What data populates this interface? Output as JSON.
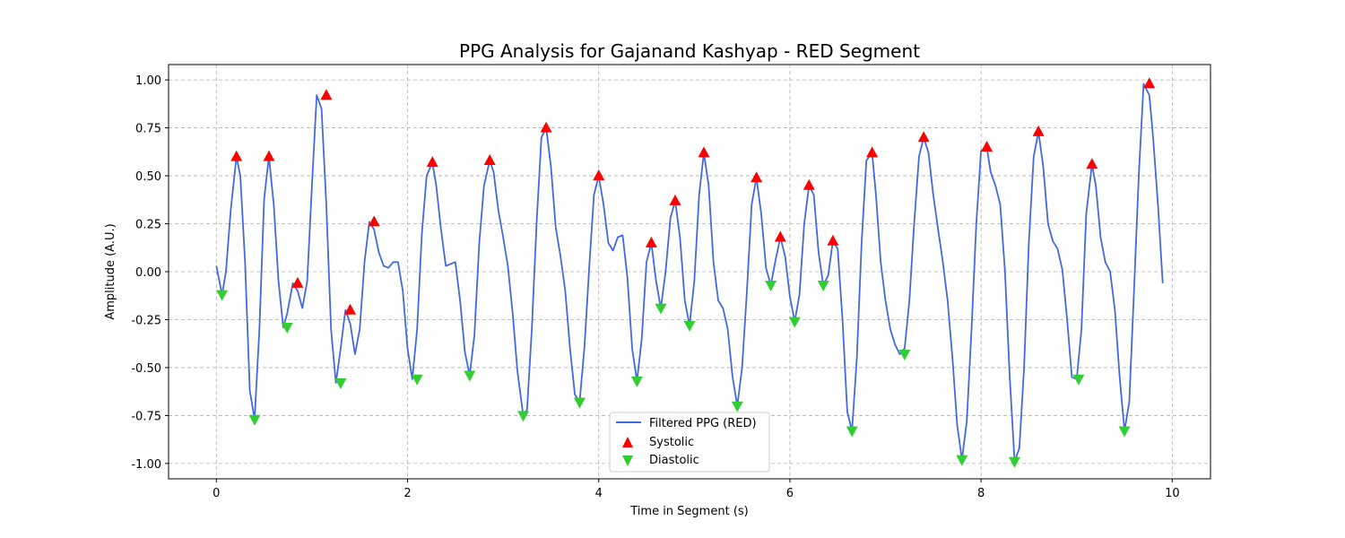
{
  "chart_data": {
    "type": "line",
    "title": "PPG Analysis for Gajanand Kashyap - RED Segment",
    "xlabel": "Time in Segment (s)",
    "ylabel": "Amplitude (A.U.)",
    "xlim": [
      -0.5,
      10.4
    ],
    "ylim": [
      -1.08,
      1.08
    ],
    "xticks": [
      0,
      2,
      4,
      6,
      8,
      10
    ],
    "yticks": [
      -1.0,
      -0.75,
      -0.5,
      -0.25,
      0.0,
      0.25,
      0.5,
      0.75,
      1.0
    ],
    "grid": true,
    "legend_position": "bottom-center",
    "colors": {
      "line": "#4169e1",
      "systolic": "#ff0000",
      "diastolic": "#32cd32"
    },
    "series": [
      {
        "name": "Filtered PPG (RED)",
        "kind": "line",
        "x": [
          0.0,
          0.06,
          0.1,
          0.15,
          0.21,
          0.25,
          0.3,
          0.35,
          0.4,
          0.45,
          0.5,
          0.55,
          0.6,
          0.65,
          0.7,
          0.74,
          0.8,
          0.85,
          0.9,
          0.95,
          1.0,
          1.05,
          1.1,
          1.15,
          1.2,
          1.25,
          1.3,
          1.35,
          1.4,
          1.45,
          1.5,
          1.55,
          1.6,
          1.65,
          1.7,
          1.75,
          1.8,
          1.85,
          1.9,
          1.95,
          2.0,
          2.05,
          2.1,
          2.15,
          2.2,
          2.26,
          2.3,
          2.35,
          2.4,
          2.45,
          2.5,
          2.55,
          2.6,
          2.65,
          2.7,
          2.75,
          2.8,
          2.86,
          2.9,
          2.95,
          3.0,
          3.05,
          3.1,
          3.15,
          3.21,
          3.25,
          3.3,
          3.35,
          3.4,
          3.45,
          3.5,
          3.55,
          3.6,
          3.65,
          3.7,
          3.75,
          3.8,
          3.85,
          3.9,
          3.95,
          4.0,
          4.05,
          4.1,
          4.15,
          4.2,
          4.25,
          4.3,
          4.35,
          4.4,
          4.45,
          4.5,
          4.55,
          4.6,
          4.65,
          4.7,
          4.75,
          4.8,
          4.85,
          4.9,
          4.95,
          5.0,
          5.05,
          5.1,
          5.15,
          5.2,
          5.25,
          5.3,
          5.35,
          5.4,
          5.45,
          5.5,
          5.55,
          5.6,
          5.65,
          5.7,
          5.75,
          5.8,
          5.85,
          5.9,
          5.95,
          6.0,
          6.05,
          6.1,
          6.15,
          6.2,
          6.25,
          6.3,
          6.35,
          6.4,
          6.45,
          6.5,
          6.55,
          6.6,
          6.65,
          6.7,
          6.75,
          6.8,
          6.86,
          6.9,
          6.95,
          7.0,
          7.05,
          7.1,
          7.15,
          7.2,
          7.25,
          7.3,
          7.35,
          7.4,
          7.45,
          7.5,
          7.55,
          7.6,
          7.65,
          7.7,
          7.75,
          7.8,
          7.85,
          7.9,
          7.95,
          8.0,
          8.06,
          8.1,
          8.15,
          8.2,
          8.25,
          8.3,
          8.35,
          8.4,
          8.45,
          8.5,
          8.55,
          8.6,
          8.65,
          8.7,
          8.75,
          8.8,
          8.85,
          8.9,
          8.95,
          9.0,
          9.05,
          9.1,
          9.16,
          9.2,
          9.25,
          9.3,
          9.35,
          9.4,
          9.45,
          9.5,
          9.55,
          9.6,
          9.65,
          9.7,
          9.76,
          9.8,
          9.85,
          9.9
        ],
        "y": [
          0.03,
          -0.12,
          0.0,
          0.32,
          0.6,
          0.5,
          0.05,
          -0.62,
          -0.77,
          -0.3,
          0.38,
          0.6,
          0.35,
          -0.05,
          -0.29,
          -0.22,
          -0.06,
          -0.1,
          -0.19,
          -0.05,
          0.45,
          0.92,
          0.85,
          0.35,
          -0.3,
          -0.58,
          -0.4,
          -0.2,
          -0.27,
          -0.43,
          -0.3,
          0.05,
          0.26,
          0.22,
          0.1,
          0.03,
          0.02,
          0.05,
          0.05,
          -0.1,
          -0.4,
          -0.56,
          -0.3,
          0.2,
          0.5,
          0.57,
          0.45,
          0.22,
          0.03,
          0.04,
          0.05,
          -0.15,
          -0.42,
          -0.54,
          -0.33,
          0.15,
          0.45,
          0.58,
          0.52,
          0.32,
          0.18,
          0.03,
          -0.22,
          -0.52,
          -0.75,
          -0.72,
          -0.3,
          0.25,
          0.7,
          0.75,
          0.55,
          0.23,
          0.08,
          -0.1,
          -0.4,
          -0.64,
          -0.68,
          -0.4,
          0.02,
          0.4,
          0.5,
          0.35,
          0.15,
          0.11,
          0.18,
          0.19,
          -0.03,
          -0.4,
          -0.57,
          -0.35,
          0.05,
          0.15,
          -0.05,
          -0.19,
          0.0,
          0.28,
          0.37,
          0.18,
          -0.15,
          -0.28,
          -0.05,
          0.4,
          0.62,
          0.45,
          0.05,
          -0.15,
          -0.19,
          -0.3,
          -0.55,
          -0.7,
          -0.5,
          -0.1,
          0.35,
          0.49,
          0.3,
          0.02,
          -0.07,
          0.06,
          0.18,
          0.08,
          -0.13,
          -0.26,
          -0.12,
          0.25,
          0.45,
          0.4,
          0.1,
          -0.07,
          -0.02,
          0.16,
          0.12,
          -0.25,
          -0.73,
          -0.83,
          -0.45,
          0.15,
          0.58,
          0.62,
          0.4,
          0.05,
          -0.15,
          -0.3,
          -0.38,
          -0.43,
          -0.4,
          -0.15,
          0.25,
          0.6,
          0.7,
          0.62,
          0.4,
          0.22,
          0.05,
          -0.15,
          -0.45,
          -0.8,
          -0.98,
          -0.78,
          -0.3,
          0.25,
          0.63,
          0.65,
          0.52,
          0.45,
          0.35,
          0.0,
          -0.55,
          -0.99,
          -0.92,
          -0.5,
          0.15,
          0.6,
          0.73,
          0.55,
          0.25,
          0.16,
          0.12,
          0.01,
          -0.25,
          -0.55,
          -0.56,
          -0.3,
          0.3,
          0.56,
          0.45,
          0.18,
          0.05,
          0.0,
          -0.2,
          -0.55,
          -0.83,
          -0.68,
          -0.1,
          0.5,
          0.98,
          0.92,
          0.7,
          0.35,
          -0.06
        ]
      },
      {
        "name": "Systolic",
        "kind": "scatter",
        "x": [
          0.21,
          0.55,
          0.85,
          1.15,
          1.4,
          1.65,
          2.26,
          2.86,
          3.45,
          4.0,
          4.55,
          4.8,
          5.1,
          5.65,
          5.9,
          6.2,
          6.45,
          6.86,
          7.4,
          8.06,
          8.6,
          9.16,
          9.76
        ],
        "y": [
          0.6,
          0.6,
          -0.06,
          0.92,
          -0.2,
          0.26,
          0.57,
          0.58,
          0.75,
          0.5,
          0.15,
          0.37,
          0.62,
          0.49,
          0.18,
          0.45,
          0.16,
          0.62,
          0.7,
          0.65,
          0.73,
          0.56,
          0.98
        ]
      },
      {
        "name": "Diastolic",
        "kind": "scatter",
        "x": [
          0.06,
          0.4,
          0.74,
          1.3,
          2.1,
          2.65,
          3.21,
          3.8,
          4.4,
          4.65,
          4.95,
          5.45,
          5.8,
          6.05,
          6.35,
          6.65,
          7.2,
          7.8,
          8.35,
          9.02,
          9.5
        ],
        "y": [
          -0.12,
          -0.77,
          -0.29,
          -0.58,
          -0.56,
          -0.54,
          -0.75,
          -0.68,
          -0.57,
          -0.19,
          -0.28,
          -0.7,
          -0.07,
          -0.26,
          -0.07,
          -0.83,
          -0.43,
          -0.98,
          -0.99,
          -0.56,
          -0.83
        ]
      }
    ]
  }
}
